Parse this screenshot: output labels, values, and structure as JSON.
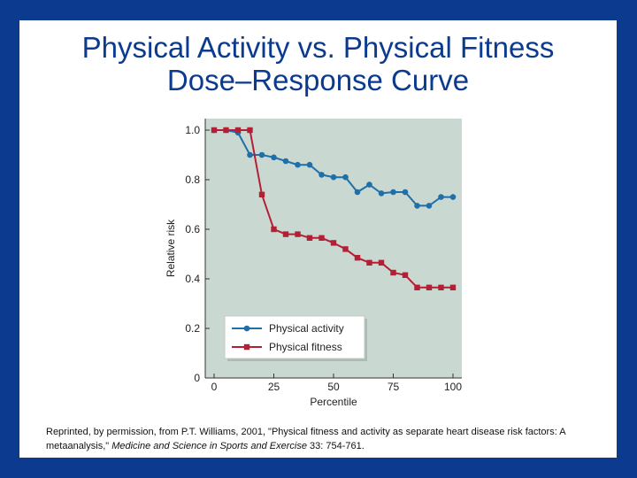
{
  "slide": {
    "title_line1": "Physical Activity vs. Physical Fitness",
    "title_line2": "Dose–Response Curve",
    "citation": {
      "pre": "Reprinted, by permission, from P.T. Williams, 2001, \"Physical fitness and activity as separate heart disease risk factors: A metaanalysis,\" ",
      "journal": "Medicine and Science in Sports and Exercise",
      "post": " 33: 754-761."
    }
  },
  "colors": {
    "background_frame": "#0b3a8f",
    "plot_background": "#c9d8d0",
    "activity": "#1f6fa8",
    "fitness": "#b32035"
  },
  "chart_data": {
    "type": "line",
    "title": "",
    "xlabel": "Percentile",
    "ylabel": "Relative risk",
    "xlim": [
      0,
      100
    ],
    "ylim": [
      0,
      1.0
    ],
    "xticks": [
      0,
      25,
      50,
      75,
      100
    ],
    "yticks": [
      0,
      0.2,
      0.4,
      0.6,
      0.8,
      1.0
    ],
    "yticklabels": [
      "0",
      "0.2",
      "0.4",
      "0.6",
      "0.8",
      "1.0"
    ],
    "grid": false,
    "legend_position": "lower-left",
    "series": [
      {
        "name": "Physical activity",
        "marker": "circle",
        "x": [
          0,
          5,
          10,
          15,
          20,
          25,
          30,
          35,
          40,
          45,
          50,
          55,
          60,
          65,
          70,
          75,
          80,
          85,
          90,
          95,
          100
        ],
        "y": [
          1.0,
          1.0,
          0.99,
          0.9,
          0.9,
          0.89,
          0.875,
          0.86,
          0.86,
          0.82,
          0.81,
          0.81,
          0.75,
          0.78,
          0.745,
          0.75,
          0.75,
          0.695,
          0.695,
          0.73,
          0.73
        ]
      },
      {
        "name": "Physical fitness",
        "marker": "square",
        "x": [
          0,
          5,
          10,
          15,
          20,
          25,
          30,
          35,
          40,
          45,
          50,
          55,
          60,
          65,
          70,
          75,
          80,
          85,
          90,
          95,
          100
        ],
        "y": [
          1.0,
          1.0,
          1.0,
          1.0,
          0.74,
          0.6,
          0.58,
          0.58,
          0.565,
          0.565,
          0.545,
          0.52,
          0.485,
          0.465,
          0.465,
          0.425,
          0.415,
          0.365,
          0.365,
          0.365,
          0.365
        ]
      }
    ]
  }
}
